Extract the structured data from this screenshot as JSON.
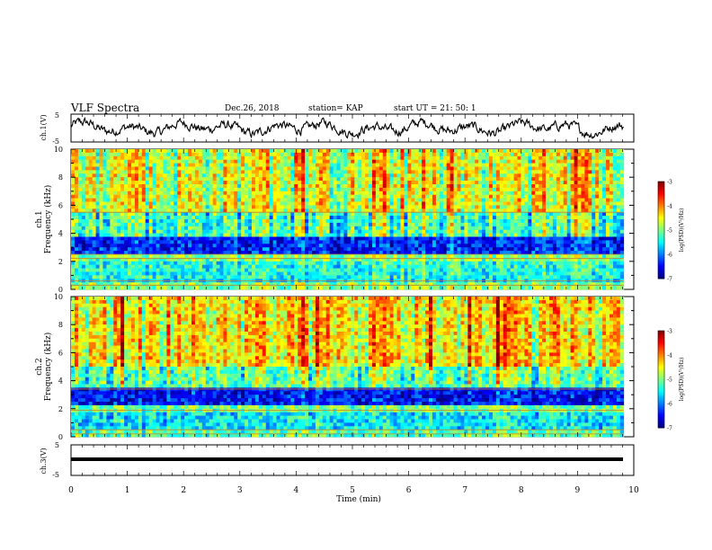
{
  "header": {
    "title": "VLF Spectra",
    "date": "Dec.26, 2018",
    "station": "station= KAP",
    "start": "start UT =  21: 50: 1"
  },
  "chart_data": [
    {
      "type": "line",
      "ylabel": "ch.1(V)",
      "ylim": [
        -5,
        5
      ],
      "yticks": [
        "5",
        "-5"
      ],
      "xlim": [
        0,
        10
      ],
      "series": [
        {
          "baseline": 0,
          "spread": 2.2
        }
      ]
    },
    {
      "type": "heatmap",
      "ylabel": "ch.1\nFrequency (kHz)",
      "ylim": [
        0,
        10
      ],
      "yticks": [
        "10",
        "8",
        "6",
        "4",
        "2",
        "0"
      ],
      "xlim": [
        0,
        10
      ],
      "colorbar": {
        "ticks": [
          "-3",
          "-4",
          "-5",
          "-6",
          "-7"
        ],
        "label": "log(PSD)(V²/Hz)",
        "range": [
          -7,
          -3
        ]
      },
      "bands": [
        {
          "from": 0.0,
          "to": 0.4,
          "level": -5.0
        },
        {
          "from": 0.4,
          "to": 0.8,
          "level": -5.6
        },
        {
          "from": 0.8,
          "to": 2.0,
          "level": -5.4
        },
        {
          "from": 2.0,
          "to": 2.6,
          "level": -5.0
        },
        {
          "from": 2.6,
          "to": 3.8,
          "level": -6.4
        },
        {
          "from": 3.8,
          "to": 5.5,
          "level": -5.3
        },
        {
          "from": 5.5,
          "to": 10.0,
          "level": -4.7
        }
      ]
    },
    {
      "type": "heatmap",
      "ylabel": "ch.2\nFrequency (kHz)",
      "ylim": [
        0,
        10
      ],
      "yticks": [
        "10",
        "8",
        "6",
        "4",
        "2",
        "0"
      ],
      "xlim": [
        0,
        10
      ],
      "colorbar": {
        "ticks": [
          "-3",
          "-4",
          "-5",
          "-6",
          "-7"
        ],
        "label": "log(PSD)(V²/Hz)",
        "range": [
          -7,
          -3
        ]
      },
      "bands": [
        {
          "from": 0.0,
          "to": 0.5,
          "level": -5.2
        },
        {
          "from": 0.5,
          "to": 1.7,
          "level": -5.6
        },
        {
          "from": 1.7,
          "to": 2.3,
          "level": -5.1
        },
        {
          "from": 2.3,
          "to": 3.4,
          "level": -6.5
        },
        {
          "from": 3.4,
          "to": 5.0,
          "level": -5.2
        },
        {
          "from": 5.0,
          "to": 10.0,
          "level": -4.5
        }
      ]
    },
    {
      "type": "line",
      "ylabel": "ch.3(V)",
      "ylim": [
        -5,
        5
      ],
      "yticks": [
        "5",
        "-5"
      ],
      "xlim": [
        0,
        10
      ],
      "series": [
        {
          "baseline": 0,
          "spread": 0
        }
      ]
    }
  ],
  "xaxis": {
    "label": "Time (min)",
    "ticks": [
      "0",
      "1",
      "2",
      "3",
      "4",
      "5",
      "6",
      "7",
      "8",
      "9",
      "10"
    ]
  }
}
